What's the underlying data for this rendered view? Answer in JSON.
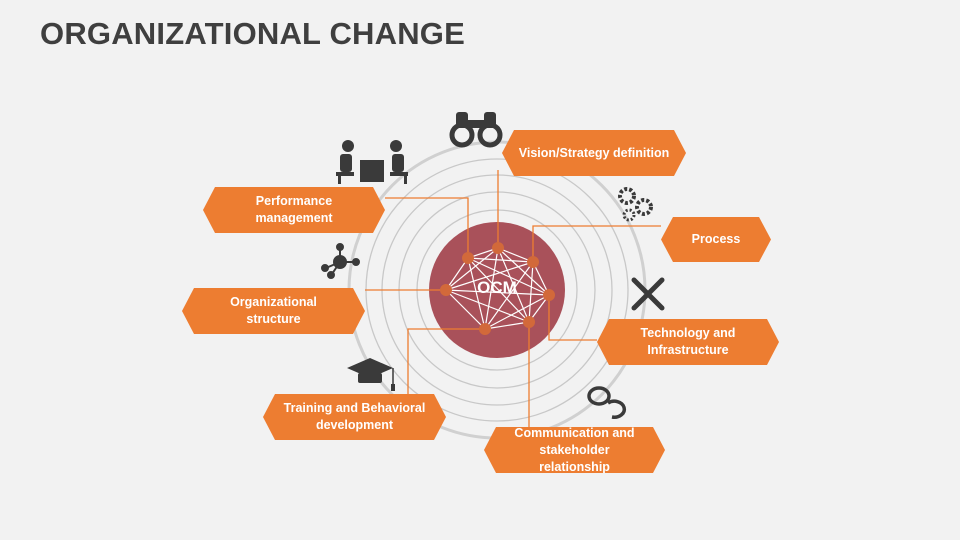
{
  "title": "ORGANIZATIONAL CHANGE",
  "center_label": "OCM",
  "colors": {
    "accent": "#ed7d31",
    "center": "#a9515a",
    "rings": "#c8c8c8",
    "icons": "#3a3a3a"
  },
  "items": [
    {
      "label": "Vision/Strategy definition",
      "icon": "binoculars-icon"
    },
    {
      "label": "Process",
      "icon": "gears-icon"
    },
    {
      "label": "Technology and Infrastructure",
      "icon": "tools-icon"
    },
    {
      "label": "Communication and stakeholder relationship",
      "icon": "chat-bubbles-icon"
    },
    {
      "label": "Training and Behavioral development",
      "icon": "graduation-cap-icon"
    },
    {
      "label": "Organizational structure",
      "icon": "network-icon"
    },
    {
      "label": "Performance management",
      "icon": "meeting-icon"
    }
  ]
}
